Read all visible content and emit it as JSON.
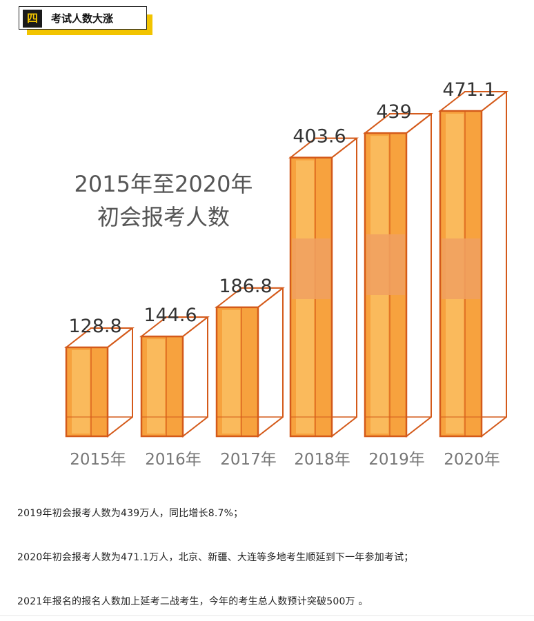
{
  "header": {
    "number": "四",
    "title": "考试人数大涨"
  },
  "chart_data": {
    "type": "bar",
    "title": "2015年至2020年\n初会报考人数",
    "categories": [
      "2015年",
      "2016年",
      "2017年",
      "2018年",
      "2019年",
      "2020年"
    ],
    "values": [
      128.8,
      144.6,
      186.8,
      403.6,
      439,
      471.1
    ],
    "data_labels": [
      "128.8",
      "144.6",
      "186.8",
      "403.6",
      "439",
      "471.1"
    ],
    "xlabel": "",
    "ylabel": "",
    "ylim": [
      0,
      471.1
    ],
    "grid": false,
    "legend": "none",
    "colors": {
      "bar_front": "#f7a23e",
      "bar_light": "#fbc46a",
      "bar_edge": "#d45a1a",
      "watermark": "#f0a060"
    }
  },
  "paragraphs": [
    "2019年初会报考人数为439万人，同比增长8.7%；",
    "2020年初会报考人数为471.1万人，北京、新疆、大连等多地考生顺延到下一年参加考试；",
    "2021年报名的报名人数加上延考二战考生，今年的考生总人数预计突破500万 。"
  ]
}
